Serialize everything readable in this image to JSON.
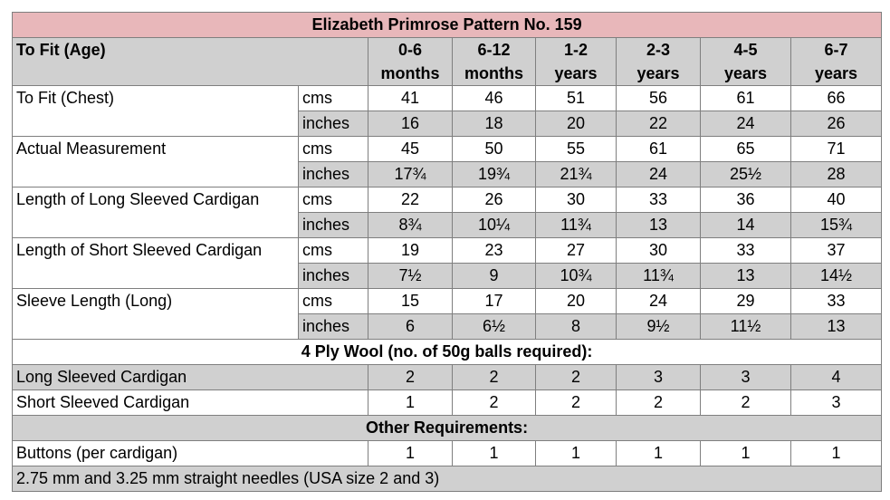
{
  "title": "Elizabeth Primrose Pattern No. 159",
  "header": {
    "label": "To Fit (Age)",
    "ages": [
      {
        "top": "0-6",
        "bottom": "months"
      },
      {
        "top": "6-12",
        "bottom": "months"
      },
      {
        "top": "1-2",
        "bottom": "years"
      },
      {
        "top": "2-3",
        "bottom": "years"
      },
      {
        "top": "4-5",
        "bottom": "years"
      },
      {
        "top": "6-7",
        "bottom": "years"
      }
    ]
  },
  "measurements": [
    {
      "label": "To Fit (Chest)",
      "cms": {
        "unit": "cms",
        "values": [
          "41",
          "46",
          "51",
          "56",
          "61",
          "66"
        ]
      },
      "inches": {
        "unit": "inches",
        "values": [
          "16",
          "18",
          "20",
          "22",
          "24",
          "26"
        ]
      }
    },
    {
      "label": "Actual Measurement",
      "cms": {
        "unit": "cms",
        "values": [
          "45",
          "50",
          "55",
          "61",
          "65",
          "71"
        ]
      },
      "inches": {
        "unit": "inches",
        "values": [
          "17¾",
          "19¾",
          "21¾",
          "24",
          "25½",
          "28"
        ]
      }
    },
    {
      "label": "Length of Long Sleeved Cardigan",
      "cms": {
        "unit": "cms",
        "values": [
          "22",
          "26",
          "30",
          "33",
          "36",
          "40"
        ]
      },
      "inches": {
        "unit": "inches",
        "values": [
          "8¾",
          "10¼",
          "11¾",
          "13",
          "14",
          "15¾"
        ]
      }
    },
    {
      "label": "Length of Short Sleeved Cardigan",
      "cms": {
        "unit": "cms",
        "values": [
          "19",
          "23",
          "27",
          "30",
          "33",
          "37"
        ]
      },
      "inches": {
        "unit": "inches",
        "values": [
          "7½",
          "9",
          "10¾",
          "11¾",
          "13",
          "14½"
        ]
      }
    },
    {
      "label": "Sleeve Length (Long)",
      "cms": {
        "unit": "cms",
        "values": [
          "15",
          "17",
          "20",
          "24",
          "29",
          "33"
        ]
      },
      "inches": {
        "unit": "inches",
        "values": [
          "6",
          "6½",
          "8",
          "9½",
          "11½",
          "13"
        ]
      }
    }
  ],
  "wool": {
    "heading": "4 Ply Wool (no. of 50g balls required):",
    "rows": [
      {
        "label": "Long Sleeved Cardigan",
        "values": [
          "2",
          "2",
          "2",
          "3",
          "3",
          "4"
        ]
      },
      {
        "label": "Short Sleeved Cardigan",
        "values": [
          "1",
          "2",
          "2",
          "2",
          "2",
          "3"
        ]
      }
    ]
  },
  "other": {
    "heading": "Other Requirements:",
    "buttons": {
      "label": "Buttons (per cardigan)",
      "values": [
        "1",
        "1",
        "1",
        "1",
        "1",
        "1"
      ]
    },
    "needles": "2.75 mm and 3.25 mm straight needles (USA size 2 and 3)"
  }
}
